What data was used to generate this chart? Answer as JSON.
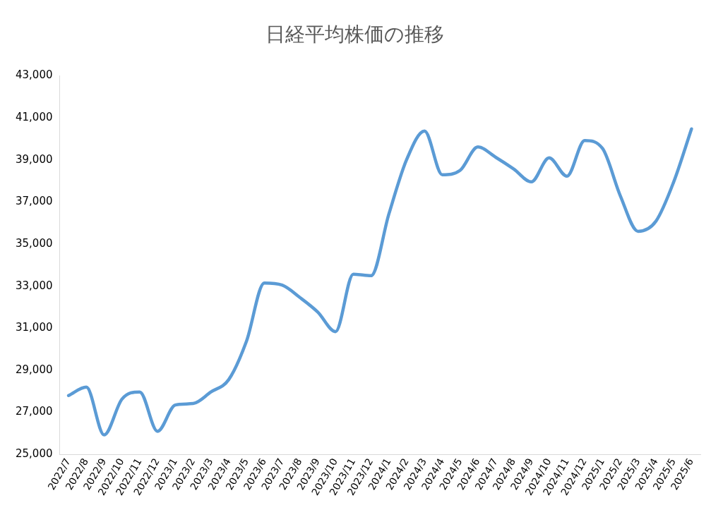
{
  "chart_data": {
    "type": "line",
    "title": "日経平均株価の推移",
    "categories": [
      "2022/7",
      "2022/8",
      "2022/9",
      "2022/10",
      "2022/11",
      "2022/12",
      "2023/1",
      "2023/2",
      "2023/3",
      "2023/4",
      "2023/5",
      "2023/6",
      "2023/7",
      "2023/8",
      "2023/9",
      "2023/10",
      "2023/11",
      "2023/12",
      "2024/1",
      "2024/2",
      "2024/3",
      "2024/4",
      "2024/5",
      "2024/6",
      "2024/7",
      "2024/8",
      "2024/9",
      "2024/10",
      "2024/11",
      "2024/12",
      "2025/1",
      "2025/2",
      "2025/3",
      "2025/4",
      "2025/5",
      "2025/6"
    ],
    "series": [
      {
        "color": "#5b9bd5",
        "values": [
          27800,
          28200,
          25930,
          27630,
          27970,
          26100,
          27350,
          27420,
          27970,
          28560,
          30390,
          33150,
          33050,
          32460,
          31770,
          30840,
          33570,
          33500,
          36440,
          39030,
          40380,
          38300,
          38510,
          39620,
          39130,
          38580,
          37960,
          39100,
          38230,
          39930,
          39550,
          37300,
          35610,
          36090,
          37960,
          40480
        ]
      }
    ],
    "ylim": [
      25000,
      43000
    ],
    "yticks": [
      {
        "value": 25000,
        "label": "25,000"
      },
      {
        "value": 27000,
        "label": "27,000"
      },
      {
        "value": 29000,
        "label": "29,000"
      },
      {
        "value": 31000,
        "label": "31,000"
      },
      {
        "value": 33000,
        "label": "33,000"
      },
      {
        "value": 35000,
        "label": "35,000"
      },
      {
        "value": 37000,
        "label": "37,000"
      },
      {
        "value": 39000,
        "label": "39,000"
      },
      {
        "value": 41000,
        "label": "41,000"
      },
      {
        "value": 43000,
        "label": "43,000"
      }
    ],
    "grid": false,
    "legend": false,
    "marker": "none",
    "line_style": "solid"
  }
}
